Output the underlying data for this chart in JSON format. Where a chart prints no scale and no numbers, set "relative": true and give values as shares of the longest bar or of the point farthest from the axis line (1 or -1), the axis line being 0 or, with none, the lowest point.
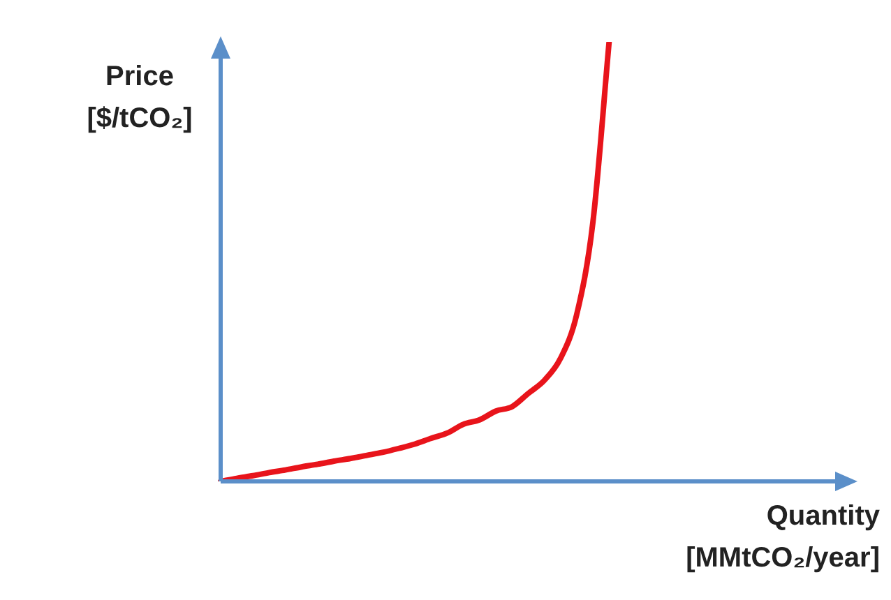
{
  "chart_data": {
    "type": "line",
    "relative": true,
    "xlabel": "Quantity\n[MMtCO₂/year]",
    "ylabel": "Price\n[$/tCO₂]",
    "color": "#e8141b",
    "categories": [
      null,
      null,
      null,
      null,
      null,
      null,
      null,
      null,
      null,
      null,
      null,
      null,
      null,
      null,
      null,
      null,
      null,
      null,
      null,
      null,
      null,
      null,
      null,
      null,
      null,
      null,
      null,
      null,
      null,
      null,
      null,
      null,
      null,
      null,
      null,
      null,
      null,
      null,
      null,
      null
    ],
    "values": [
      0,
      0.007,
      0.013,
      0.02,
      0.026,
      0.033,
      0.039,
      0.046,
      0.052,
      0.059,
      0.066,
      0.075,
      0.085,
      0.098,
      0.11,
      0.13,
      0.14,
      0.16,
      0.17,
      0.2,
      0.23,
      0.28,
      0.38,
      0.59,
      1,
      null,
      null,
      null,
      null,
      null,
      null,
      null,
      null,
      null,
      null,
      null,
      null,
      null,
      null,
      null
    ]
  }
}
